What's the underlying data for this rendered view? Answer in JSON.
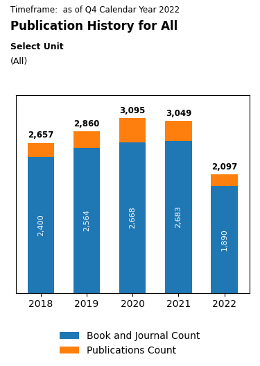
{
  "chart_data": {
    "type": "bar",
    "title": "Publication History for All",
    "subtitle": "Timeframe:  as of Q4 Calendar Year 2022",
    "annotations": [
      "Select Unit",
      "(All)"
    ],
    "categories": [
      "2018",
      "2019",
      "2020",
      "2021",
      "2022"
    ],
    "series": [
      {
        "name": "Book and Journal Count",
        "values": [
          2400,
          2564,
          2668,
          2683,
          1890
        ],
        "value_labels": [
          "2,400",
          "2,564",
          "2,668",
          "2,683",
          "1,890"
        ]
      },
      {
        "name": "Publications Count",
        "values": [
          2657,
          2860,
          3095,
          3049,
          2097
        ],
        "value_labels": [
          "2,657",
          "2,860",
          "3,095",
          "3,049",
          "2,097"
        ]
      }
    ],
    "ylim": [
      0,
      3500
    ],
    "stacked": false,
    "data_labels": true,
    "tick_labels": "x",
    "legend": "lower center"
  }
}
